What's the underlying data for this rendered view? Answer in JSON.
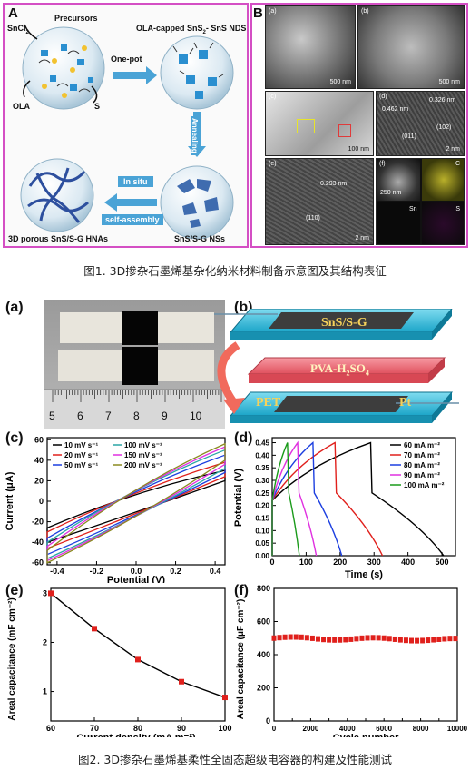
{
  "fig1": {
    "panel_a": {
      "label": "A",
      "precursors": "Precursors",
      "sncl": "SnCl",
      "sncl_sub": "2",
      "ola": "OLA",
      "s": "S",
      "one_pot": "One-pot",
      "nds_title": "OLA-capped SnS",
      "nds_title_sub": "2",
      "nds_title_rest": "- SnS NDS",
      "annealing": "Annealing",
      "in_situ": "In situ",
      "self_assembly": "self-assembly",
      "hnas": "3D porous SnS/S-G HNAs",
      "nss": "SnS/S-G NSs"
    },
    "panel_b": {
      "label": "B",
      "sub_a": "(a)",
      "sub_b": "(b)",
      "sub_c": "(c)",
      "sub_d": "(d)",
      "sub_e": "(e)",
      "sub_f": "(f)",
      "scale_a": "500 nm",
      "scale_b": "500 nm",
      "scale_c": "100 nm",
      "scale_d": "2 nm",
      "scale_e": "2 nm",
      "scale_f": "250 nm",
      "d_spacing1": "0.462 nm",
      "d_spacing2": "0.326 nm",
      "hkl1": "(011)",
      "hkl2": "(102)",
      "e_spacing": "0.293 nm",
      "e_hkl": "(110)",
      "map_c": "C",
      "map_sn": "Sn",
      "map_s": "S"
    },
    "caption": "图1. 3D掺杂石墨烯基杂化纳米材料制备示意图及其结构表征"
  },
  "fig2": {
    "panel_a": {
      "label": "(a)",
      "ruler_numbers": [
        "5",
        "6",
        "7",
        "8",
        "9",
        "10"
      ]
    },
    "panel_b": {
      "label": "(b)",
      "layer1": "SnS/S-G",
      "layer2": "PVA-H",
      "layer2_sub1": "2",
      "layer2_mid": "SO",
      "layer2_sub2": "4",
      "pet": "PET",
      "pt": "Pt"
    },
    "panel_c": {
      "label": "(c)",
      "xlabel": "Potential (V)",
      "ylabel": "Current (μA)",
      "legend": [
        "10 mV s⁻¹",
        "20 mV s⁻¹",
        "50 mV s⁻¹",
        "100 mV s⁻¹",
        "150 mV s⁻¹",
        "200 mV s⁻¹"
      ],
      "xticks": [
        "-0.4",
        "-0.2",
        "0.0",
        "0.2",
        "0.4"
      ],
      "yticks": [
        "60",
        "40",
        "20",
        "0",
        "-20",
        "-40",
        "-60"
      ]
    },
    "panel_d": {
      "label": "(d)",
      "xlabel": "Time (s)",
      "ylabel": "Potential (V)",
      "legend": [
        "60 mA m⁻²",
        "70 mA m⁻²",
        "80 mA m⁻²",
        "90 mA m⁻²",
        "100 mA m⁻²"
      ],
      "xticks": [
        "0",
        "100",
        "200",
        "300",
        "400",
        "500"
      ],
      "yticks": [
        "0.45",
        "0.40",
        "0.35",
        "0.30",
        "0.25",
        "0.20",
        "0.15",
        "0.10",
        "0.05",
        "0.00"
      ]
    },
    "panel_e": {
      "label": "(e)",
      "xlabel": "Current density (mA m⁻²)",
      "ylabel": "Areal capacitance (mF cm⁻²)",
      "xticks": [
        "60",
        "70",
        "80",
        "90",
        "100"
      ],
      "yticks": [
        "3",
        "2",
        "1"
      ]
    },
    "panel_f": {
      "label": "(f)",
      "xlabel": "Cycle number",
      "ylabel": "Areal capacitance (μF cm⁻²)",
      "xticks": [
        "0",
        "1000",
        "2000",
        "3000",
        "4000",
        "5000",
        "6000",
        "7000",
        "8000",
        "9000",
        "10000"
      ],
      "yticks": [
        "800",
        "600",
        "400",
        "200",
        "0"
      ]
    },
    "caption": "图2. 3D掺杂石墨烯基柔性全固态超级电容器的构建及性能测试"
  },
  "chart_data": [
    {
      "type": "line",
      "panel": "(c)",
      "xlabel": "Potential (V)",
      "ylabel": "Current (μA)",
      "xlim": [
        -0.45,
        0.45
      ],
      "ylim": [
        -62,
        62
      ],
      "series": [
        {
          "name": "10 mV s⁻¹",
          "color": "#000000",
          "x_max": 0.45,
          "upper": [
            [
              -0.45,
              -26
            ],
            [
              0,
              3
            ],
            [
              0.45,
              30
            ]
          ],
          "lower": [
            [
              0.45,
              20
            ],
            [
              0,
              -3
            ],
            [
              -0.45,
              -40
            ]
          ]
        },
        {
          "name": "20 mV s⁻¹",
          "color": "#e0201c",
          "x_max": 0.45,
          "upper": [
            [
              -0.45,
              -30
            ],
            [
              0,
              4
            ],
            [
              0.45,
              38
            ]
          ],
          "lower": [
            [
              0.45,
              24
            ],
            [
              0,
              -5
            ],
            [
              -0.45,
              -46
            ]
          ]
        },
        {
          "name": "50 mV s⁻¹",
          "color": "#1c3fe0",
          "x_max": 0.45,
          "upper": [
            [
              -0.45,
              -36
            ],
            [
              0,
              6
            ],
            [
              0.45,
              45
            ]
          ],
          "lower": [
            [
              0.45,
              28
            ],
            [
              0,
              -7
            ],
            [
              -0.45,
              -52
            ]
          ]
        },
        {
          "name": "100 mV s⁻¹",
          "color": "#2aa6a6",
          "x_max": 0.45,
          "upper": [
            [
              -0.45,
              -40
            ],
            [
              0,
              8
            ],
            [
              0.45,
              50
            ]
          ],
          "lower": [
            [
              0.45,
              32
            ],
            [
              0,
              -9
            ],
            [
              -0.45,
              -56
            ]
          ]
        },
        {
          "name": "150 mV s⁻¹",
          "color": "#e030e0",
          "x_max": 0.45,
          "upper": [
            [
              -0.45,
              -44
            ],
            [
              0,
              9
            ],
            [
              0.45,
              53
            ]
          ],
          "lower": [
            [
              0.45,
              36
            ],
            [
              0,
              -10
            ],
            [
              -0.45,
              -58
            ]
          ]
        },
        {
          "name": "200 mV s⁻¹",
          "color": "#8a8a20",
          "x_max": 0.45,
          "upper": [
            [
              -0.45,
              -48
            ],
            [
              0,
              10
            ],
            [
              0.45,
              56
            ]
          ],
          "lower": [
            [
              0.45,
              40
            ],
            [
              0,
              -11
            ],
            [
              -0.45,
              -60
            ]
          ]
        }
      ]
    },
    {
      "type": "line",
      "panel": "(d)",
      "xlabel": "Time (s)",
      "ylabel": "Potential (V)",
      "xlim": [
        0,
        540
      ],
      "ylim": [
        0,
        0.47
      ],
      "series": [
        {
          "name": "60 mA m⁻²",
          "color": "#000000",
          "charge_end": 290,
          "discharge_end": 505
        },
        {
          "name": "70 mA m⁻²",
          "color": "#e0201c",
          "charge_end": 185,
          "discharge_end": 325
        },
        {
          "name": "80 mA m⁻²",
          "color": "#1c3fe0",
          "charge_end": 120,
          "discharge_end": 205
        },
        {
          "name": "90 mA m⁻²",
          "color": "#e030e0",
          "charge_end": 75,
          "discharge_end": 130
        },
        {
          "name": "100 mA m⁻²",
          "color": "#1a9a1a",
          "charge_end": 45,
          "discharge_end": 80
        }
      ]
    },
    {
      "type": "line",
      "panel": "(e)",
      "xlabel": "Current density (mA m⁻²)",
      "ylabel": "Areal capacitance (mF cm⁻²)",
      "xlim": [
        60,
        100
      ],
      "ylim": [
        0.4,
        3.1
      ],
      "x": [
        60,
        70,
        80,
        90,
        100
      ],
      "y": [
        3.0,
        2.28,
        1.65,
        1.2,
        0.88
      ]
    },
    {
      "type": "scatter",
      "panel": "(f)",
      "xlabel": "Cycle number",
      "ylabel": "Areal capacitance (μF cm⁻²)",
      "xlim": [
        0,
        10000
      ],
      "ylim": [
        0,
        800
      ],
      "y_approx": 500
    }
  ],
  "colors": {
    "frame": "#d44fc4",
    "arrow": "#4aa3d6",
    "red": "#e0201c",
    "pvalayer": "#ef6f7a",
    "electrode": "#35c0dc"
  }
}
